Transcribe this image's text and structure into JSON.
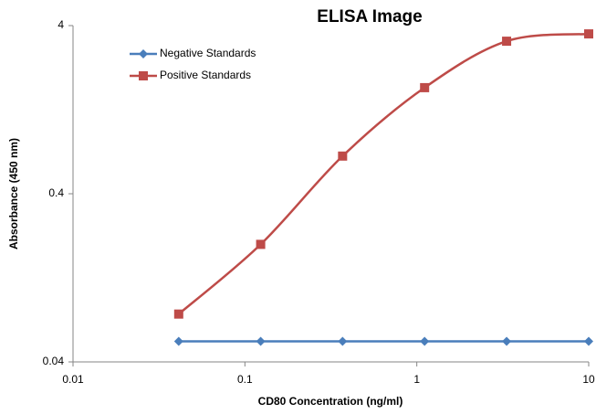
{
  "chart_data": {
    "type": "line",
    "title": "ELISA Image",
    "x_label": "CD80 Concentration (ng/ml)",
    "y_label": "Absorbance (450 nm)",
    "x": [
      0.0412,
      0.1235,
      0.37,
      1.11,
      3.33,
      10
    ],
    "series": [
      {
        "name": "Negative Standards",
        "color": "#4a7ebb",
        "marker": "diamond",
        "values": [
          0.053,
          0.053,
          0.053,
          0.053,
          0.053,
          0.053
        ]
      },
      {
        "name": "Positive Standards",
        "color": "#be4b48",
        "marker": "square",
        "values": [
          0.077,
          0.2,
          0.67,
          1.71,
          3.23,
          3.57
        ]
      }
    ],
    "xscale": "log",
    "yscale": "log",
    "xlim": [
      0.01,
      10
    ],
    "xticks": [
      0.01,
      0.1,
      1,
      10
    ],
    "ylim": [
      0.04,
      4
    ],
    "yticks": [
      0.04,
      0.4,
      4
    ],
    "legend": "upper left",
    "smooth": true
  }
}
